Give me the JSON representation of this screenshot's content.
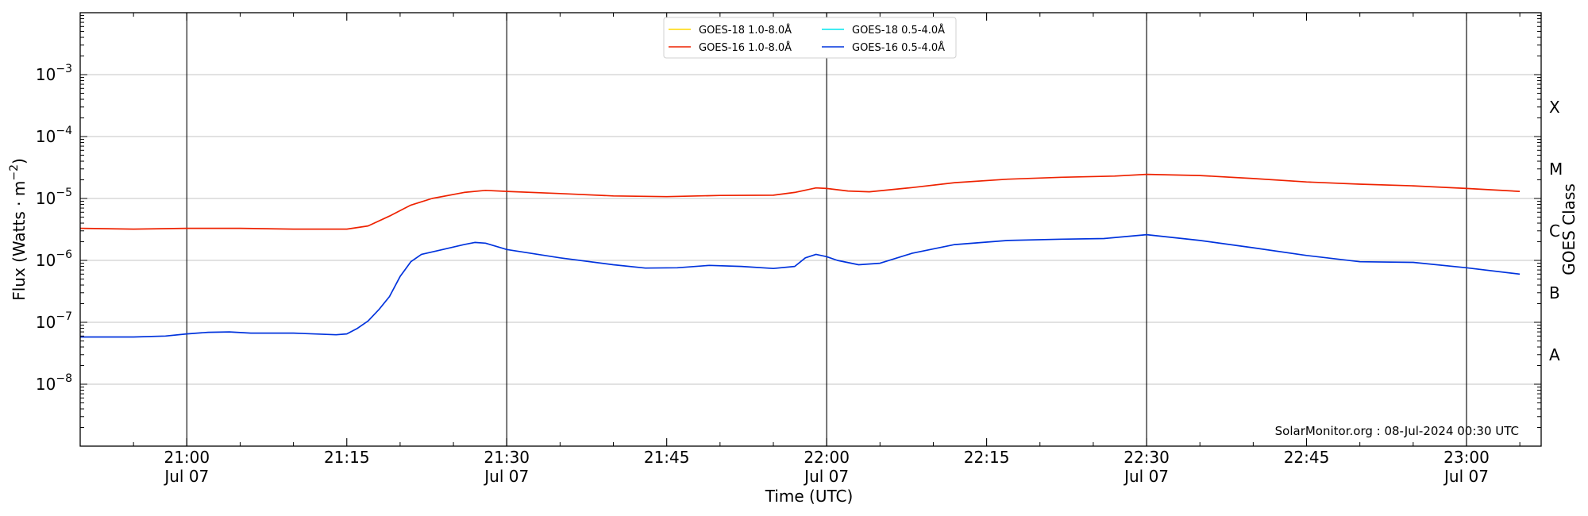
{
  "chart_data": {
    "type": "line",
    "xlabel": "Time (UTC)",
    "ylabel": "Flux (Watts · m⁻²)",
    "ylabel_right": "GOES Class",
    "yscale": "log",
    "ylim": [
      1e-09,
      0.01
    ],
    "xlim": [
      "2024-07-07 20:50",
      "2024-07-07 23:07"
    ],
    "grid": "horizontal at decades",
    "legend_position": "top-center",
    "credit": "SolarMonitor.org : 08-Jul-2024 00:30 UTC",
    "y_ticks": [
      {
        "value": 1e-08,
        "base": "10",
        "exp": "−8"
      },
      {
        "value": 1e-07,
        "base": "10",
        "exp": "−7"
      },
      {
        "value": 1e-06,
        "base": "10",
        "exp": "−6"
      },
      {
        "value": 1e-05,
        "base": "10",
        "exp": "−5"
      },
      {
        "value": 0.0001,
        "base": "10",
        "exp": "−4"
      },
      {
        "value": 0.001,
        "base": "10",
        "exp": "−3"
      }
    ],
    "x_ticks": [
      {
        "time": "21:00",
        "line1": "21:00",
        "line2": "Jul 07",
        "major": true
      },
      {
        "time": "21:15",
        "line1": "21:15",
        "line2": "",
        "major": false
      },
      {
        "time": "21:30",
        "line1": "21:30",
        "line2": "Jul 07",
        "major": true
      },
      {
        "time": "21:45",
        "line1": "21:45",
        "line2": "",
        "major": false
      },
      {
        "time": "22:00",
        "line1": "22:00",
        "line2": "Jul 07",
        "major": true
      },
      {
        "time": "22:15",
        "line1": "22:15",
        "line2": "",
        "major": false
      },
      {
        "time": "22:30",
        "line1": "22:30",
        "line2": "Jul 07",
        "major": true
      },
      {
        "time": "22:45",
        "line1": "22:45",
        "line2": "",
        "major": false
      },
      {
        "time": "23:00",
        "line1": "23:00",
        "line2": "Jul 07",
        "major": true
      }
    ],
    "class_labels": [
      {
        "label": "A",
        "value": 3e-08
      },
      {
        "label": "B",
        "value": 3e-07
      },
      {
        "label": "C",
        "value": 3e-06
      },
      {
        "label": "M",
        "value": 3e-05
      },
      {
        "label": "X",
        "value": 0.0003
      }
    ],
    "series": [
      {
        "name": "GOES-18 1.0-8.0Å",
        "color": "#ffd700",
        "points": []
      },
      {
        "name": "GOES-18 0.5-4.0Å",
        "color": "#00e5ee",
        "points": []
      },
      {
        "name": "GOES-16 1.0-8.0Å",
        "color": "#ee2200",
        "points": [
          [
            "20:50",
            3.3e-06
          ],
          [
            "20:55",
            3.2e-06
          ],
          [
            "21:00",
            3.3e-06
          ],
          [
            "21:05",
            3.3e-06
          ],
          [
            "21:10",
            3.2e-06
          ],
          [
            "21:15",
            3.2e-06
          ],
          [
            "21:17",
            3.6e-06
          ],
          [
            "21:19",
            5.2e-06
          ],
          [
            "21:21",
            7.8e-06
          ],
          [
            "21:23",
            1e-05
          ],
          [
            "21:26",
            1.25e-05
          ],
          [
            "21:28",
            1.35e-05
          ],
          [
            "21:30",
            1.3e-05
          ],
          [
            "21:35",
            1.2e-05
          ],
          [
            "21:40",
            1.1e-05
          ],
          [
            "21:45",
            1.07e-05
          ],
          [
            "21:50",
            1.12e-05
          ],
          [
            "21:55",
            1.13e-05
          ],
          [
            "21:57",
            1.25e-05
          ],
          [
            "21:59",
            1.48e-05
          ],
          [
            "22:00",
            1.45e-05
          ],
          [
            "22:02",
            1.32e-05
          ],
          [
            "22:04",
            1.28e-05
          ],
          [
            "22:08",
            1.5e-05
          ],
          [
            "22:12",
            1.8e-05
          ],
          [
            "22:17",
            2.05e-05
          ],
          [
            "22:22",
            2.2e-05
          ],
          [
            "22:27",
            2.3e-05
          ],
          [
            "22:30",
            2.45e-05
          ],
          [
            "22:35",
            2.35e-05
          ],
          [
            "22:40",
            2.1e-05
          ],
          [
            "22:45",
            1.85e-05
          ],
          [
            "22:50",
            1.7e-05
          ],
          [
            "22:55",
            1.6e-05
          ],
          [
            "23:00",
            1.45e-05
          ],
          [
            "23:05",
            1.3e-05
          ]
        ]
      },
      {
        "name": "GOES-16 0.5-4.0Å",
        "color": "#0033dd",
        "points": [
          [
            "20:50",
            5.8e-08
          ],
          [
            "20:55",
            5.8e-08
          ],
          [
            "20:58",
            6e-08
          ],
          [
            "21:00",
            6.5e-08
          ],
          [
            "21:02",
            6.9e-08
          ],
          [
            "21:04",
            7e-08
          ],
          [
            "21:06",
            6.7e-08
          ],
          [
            "21:10",
            6.7e-08
          ],
          [
            "21:14",
            6.3e-08
          ],
          [
            "21:15",
            6.5e-08
          ],
          [
            "21:16",
            8e-08
          ],
          [
            "21:17",
            1.05e-07
          ],
          [
            "21:18",
            1.6e-07
          ],
          [
            "21:19",
            2.6e-07
          ],
          [
            "21:20",
            5.5e-07
          ],
          [
            "21:21",
            9.5e-07
          ],
          [
            "21:22",
            1.25e-06
          ],
          [
            "21:24",
            1.5e-06
          ],
          [
            "21:26",
            1.8e-06
          ],
          [
            "21:27",
            1.95e-06
          ],
          [
            "21:28",
            1.9e-06
          ],
          [
            "21:30",
            1.5e-06
          ],
          [
            "21:35",
            1.1e-06
          ],
          [
            "21:40",
            8.5e-07
          ],
          [
            "21:43",
            7.5e-07
          ],
          [
            "21:46",
            7.6e-07
          ],
          [
            "21:49",
            8.3e-07
          ],
          [
            "21:52",
            8e-07
          ],
          [
            "21:55",
            7.4e-07
          ],
          [
            "21:57",
            8e-07
          ],
          [
            "21:58",
            1.1e-06
          ],
          [
            "21:59",
            1.25e-06
          ],
          [
            "22:00",
            1.15e-06
          ],
          [
            "22:01",
            1e-06
          ],
          [
            "22:03",
            8.5e-07
          ],
          [
            "22:05",
            9e-07
          ],
          [
            "22:08",
            1.3e-06
          ],
          [
            "22:12",
            1.8e-06
          ],
          [
            "22:17",
            2.1e-06
          ],
          [
            "22:22",
            2.2e-06
          ],
          [
            "22:26",
            2.25e-06
          ],
          [
            "22:30",
            2.6e-06
          ],
          [
            "22:35",
            2.1e-06
          ],
          [
            "22:40",
            1.6e-06
          ],
          [
            "22:45",
            1.2e-06
          ],
          [
            "22:50",
            9.5e-07
          ],
          [
            "22:55",
            9.3e-07
          ],
          [
            "23:00",
            7.6e-07
          ],
          [
            "23:05",
            6e-07
          ]
        ]
      }
    ]
  }
}
